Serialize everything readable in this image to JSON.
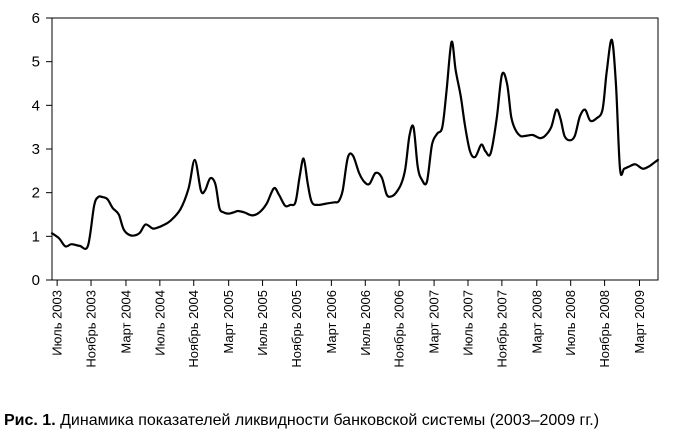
{
  "chart_data": {
    "type": "line",
    "title": "",
    "xlabel": "",
    "ylabel": "",
    "ylim": [
      0,
      6
    ],
    "yticks": [
      0,
      1,
      2,
      3,
      4,
      5,
      6
    ],
    "xlim": [
      2003.45,
      2009.35
    ],
    "xticks": [
      {
        "label": "Июль 2003",
        "x": 2003.5
      },
      {
        "label": "Ноябрь 2003",
        "x": 2003.83
      },
      {
        "label": "Март 2004",
        "x": 2004.17
      },
      {
        "label": "Июль 2004",
        "x": 2004.5
      },
      {
        "label": "Ноябрь 2004",
        "x": 2004.83
      },
      {
        "label": "Март 2005",
        "x": 2005.17
      },
      {
        "label": "Июль 2005",
        "x": 2005.5
      },
      {
        "label": "Ноябрь 2005",
        "x": 2005.83
      },
      {
        "label": "Март 2006",
        "x": 2006.17
      },
      {
        "label": "Июль 2006",
        "x": 2006.5
      },
      {
        "label": "Ноябрь 2006",
        "x": 2006.83
      },
      {
        "label": "Март 2007",
        "x": 2007.17
      },
      {
        "label": "Июль 2007",
        "x": 2007.5
      },
      {
        "label": "Ноябрь 2007",
        "x": 2007.83
      },
      {
        "label": "Март 2008",
        "x": 2008.17
      },
      {
        "label": "Июль 2008",
        "x": 2008.5
      },
      {
        "label": "Ноябрь 2008",
        "x": 2008.83
      },
      {
        "label": "Март 2009",
        "x": 2009.17
      }
    ],
    "grid": false,
    "legend": "none",
    "line_color": "#000000",
    "series": [
      {
        "x": [
          2003.45,
          2003.52,
          2003.58,
          2003.64,
          2003.72,
          2003.8,
          2003.86,
          2003.9,
          2003.94,
          2003.99,
          2004.04,
          2004.1,
          2004.15,
          2004.22,
          2004.3,
          2004.36,
          2004.43,
          2004.48,
          2004.53,
          2004.6,
          2004.7,
          2004.78,
          2004.84,
          2004.9,
          2004.94,
          2004.99,
          2005.04,
          2005.08,
          2005.12,
          2005.17,
          2005.22,
          2005.26,
          2005.32,
          2005.4,
          2005.47,
          2005.54,
          2005.61,
          2005.66,
          2005.72,
          2005.77,
          2005.82,
          2005.86,
          2005.9,
          2005.94,
          2005.98,
          2006.04,
          2006.12,
          2006.2,
          2006.24,
          2006.28,
          2006.33,
          2006.38,
          2006.44,
          2006.49,
          2006.54,
          2006.6,
          2006.66,
          2006.71,
          2006.76,
          2006.8,
          2006.85,
          2006.89,
          2006.93,
          2006.97,
          2007.01,
          2007.05,
          2007.1,
          2007.15,
          2007.2,
          2007.25,
          2007.29,
          2007.34,
          2007.38,
          2007.43,
          2007.47,
          2007.52,
          2007.57,
          2007.63,
          2007.67,
          2007.72,
          2007.78,
          2007.83,
          2007.88,
          2007.92,
          2007.96,
          2008.01,
          2008.06,
          2008.13,
          2008.2,
          2008.25,
          2008.31,
          2008.36,
          2008.4,
          2008.44,
          2008.49,
          2008.54,
          2008.59,
          2008.64,
          2008.69,
          2008.75,
          2008.81,
          2008.85,
          2008.9,
          2008.94,
          2008.98,
          2009.02,
          2009.07,
          2009.13,
          2009.2,
          2009.26,
          2009.32,
          2009.35
        ],
        "values": [
          1.07,
          0.95,
          0.77,
          0.82,
          0.78,
          0.78,
          1.7,
          1.9,
          1.9,
          1.85,
          1.65,
          1.5,
          1.15,
          1.02,
          1.07,
          1.27,
          1.18,
          1.2,
          1.25,
          1.35,
          1.62,
          2.1,
          2.75,
          2.05,
          2.05,
          2.33,
          2.2,
          1.65,
          1.55,
          1.52,
          1.55,
          1.58,
          1.55,
          1.48,
          1.55,
          1.75,
          2.1,
          1.95,
          1.7,
          1.72,
          1.78,
          2.35,
          2.78,
          2.2,
          1.78,
          1.72,
          1.75,
          1.78,
          1.8,
          2.05,
          2.8,
          2.85,
          2.45,
          2.25,
          2.2,
          2.45,
          2.35,
          1.95,
          1.92,
          2.0,
          2.2,
          2.55,
          3.3,
          3.5,
          2.6,
          2.3,
          2.25,
          3.1,
          3.35,
          3.5,
          4.3,
          5.45,
          4.8,
          4.2,
          3.55,
          2.95,
          2.82,
          3.1,
          2.95,
          2.9,
          3.7,
          4.7,
          4.5,
          3.75,
          3.45,
          3.3,
          3.3,
          3.32,
          3.25,
          3.3,
          3.5,
          3.9,
          3.7,
          3.3,
          3.2,
          3.3,
          3.75,
          3.9,
          3.65,
          3.7,
          3.9,
          4.75,
          5.5,
          4.5,
          2.55,
          2.55,
          2.6,
          2.65,
          2.55,
          2.6,
          2.7,
          2.75
        ]
      }
    ]
  },
  "caption": {
    "lead": "Рис. 1.",
    "text": " Динамика показателей ликвидности банковской системы (2003–2009 гг.)"
  }
}
